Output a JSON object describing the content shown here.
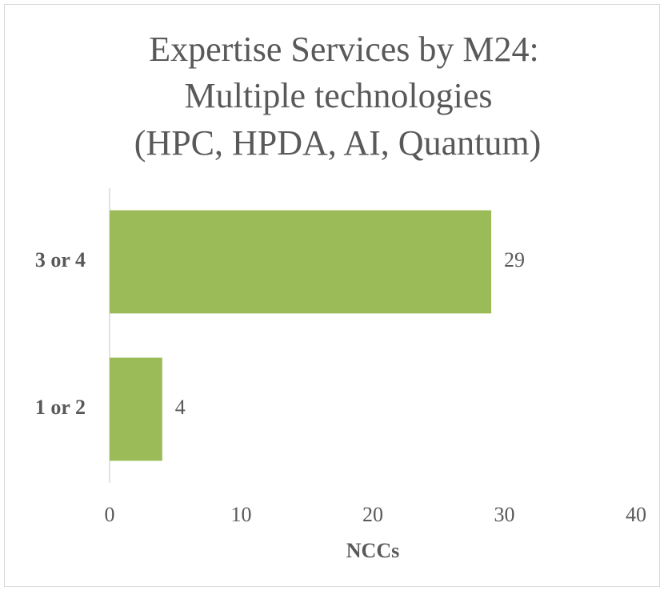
{
  "chart_data": {
    "type": "bar",
    "orientation": "horizontal",
    "title": [
      "Expertise Services by M24:",
      "Multiple technologies",
      "(HPC, HPDA, AI, Quantum)"
    ],
    "categories": [
      "1 or 2",
      "3 or 4"
    ],
    "values": [
      4,
      29
    ],
    "color": "#9bbb59",
    "xlabel": "NCCs",
    "xlim": [
      0,
      40
    ],
    "xticks": [
      0,
      10,
      20,
      30,
      40
    ],
    "grid": false
  }
}
